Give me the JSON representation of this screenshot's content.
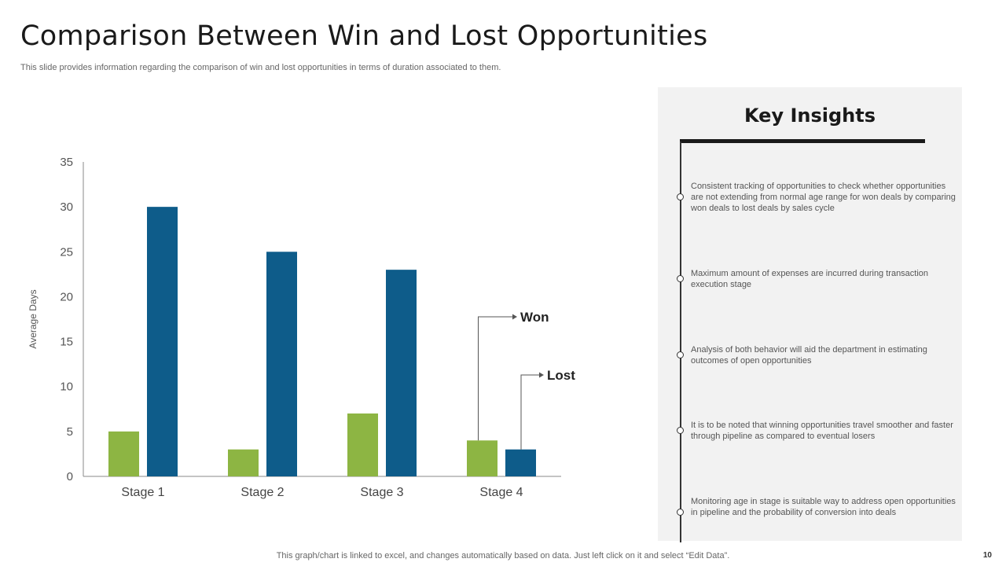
{
  "slide": {
    "title": "Comparison Between Win and Lost Opportunities",
    "subtitle": "This slide provides information regarding the comparison of win and lost opportunities in terms of duration associated to them.",
    "footer": "This graph/chart is linked to excel,  and changes automatically based on data. Just left click on it and select “Edit Data”.",
    "page_number": "10"
  },
  "insights": {
    "heading": "Key Insights",
    "items": [
      "Consistent tracking of opportunities to check whether opportunities are not extending from normal age range for won deals by comparing won deals to lost deals by sales cycle",
      "Maximum amount of expenses are incurred during transaction execution stage",
      "Analysis of both behavior will aid the department in estimating outcomes of open opportunities",
      "It is to be noted that winning opportunities travel smoother and faster through pipeline as compared to eventual losers",
      "Monitoring age in stage is suitable way to  address open opportunities in pipeline and the probability of conversion into deals"
    ]
  },
  "colors": {
    "won": "#8db543",
    "lost": "#0e5c8a",
    "axis": "#888888"
  },
  "chart_data": {
    "type": "bar",
    "categories": [
      "Stage 1",
      "Stage 2",
      "Stage 3",
      "Stage 4"
    ],
    "series": [
      {
        "name": "Won",
        "values": [
          5,
          3,
          7,
          4
        ]
      },
      {
        "name": "Lost",
        "values": [
          30,
          25,
          23,
          3
        ]
      }
    ],
    "title": "",
    "xlabel": "",
    "ylabel": "Average Days",
    "ylim": [
      0,
      35
    ],
    "yticks": [
      "0",
      "5",
      "10",
      "15",
      "20",
      "25",
      "30",
      "35"
    ],
    "grid": false,
    "legend": "callout labels pointing to Stage 4 bars"
  }
}
